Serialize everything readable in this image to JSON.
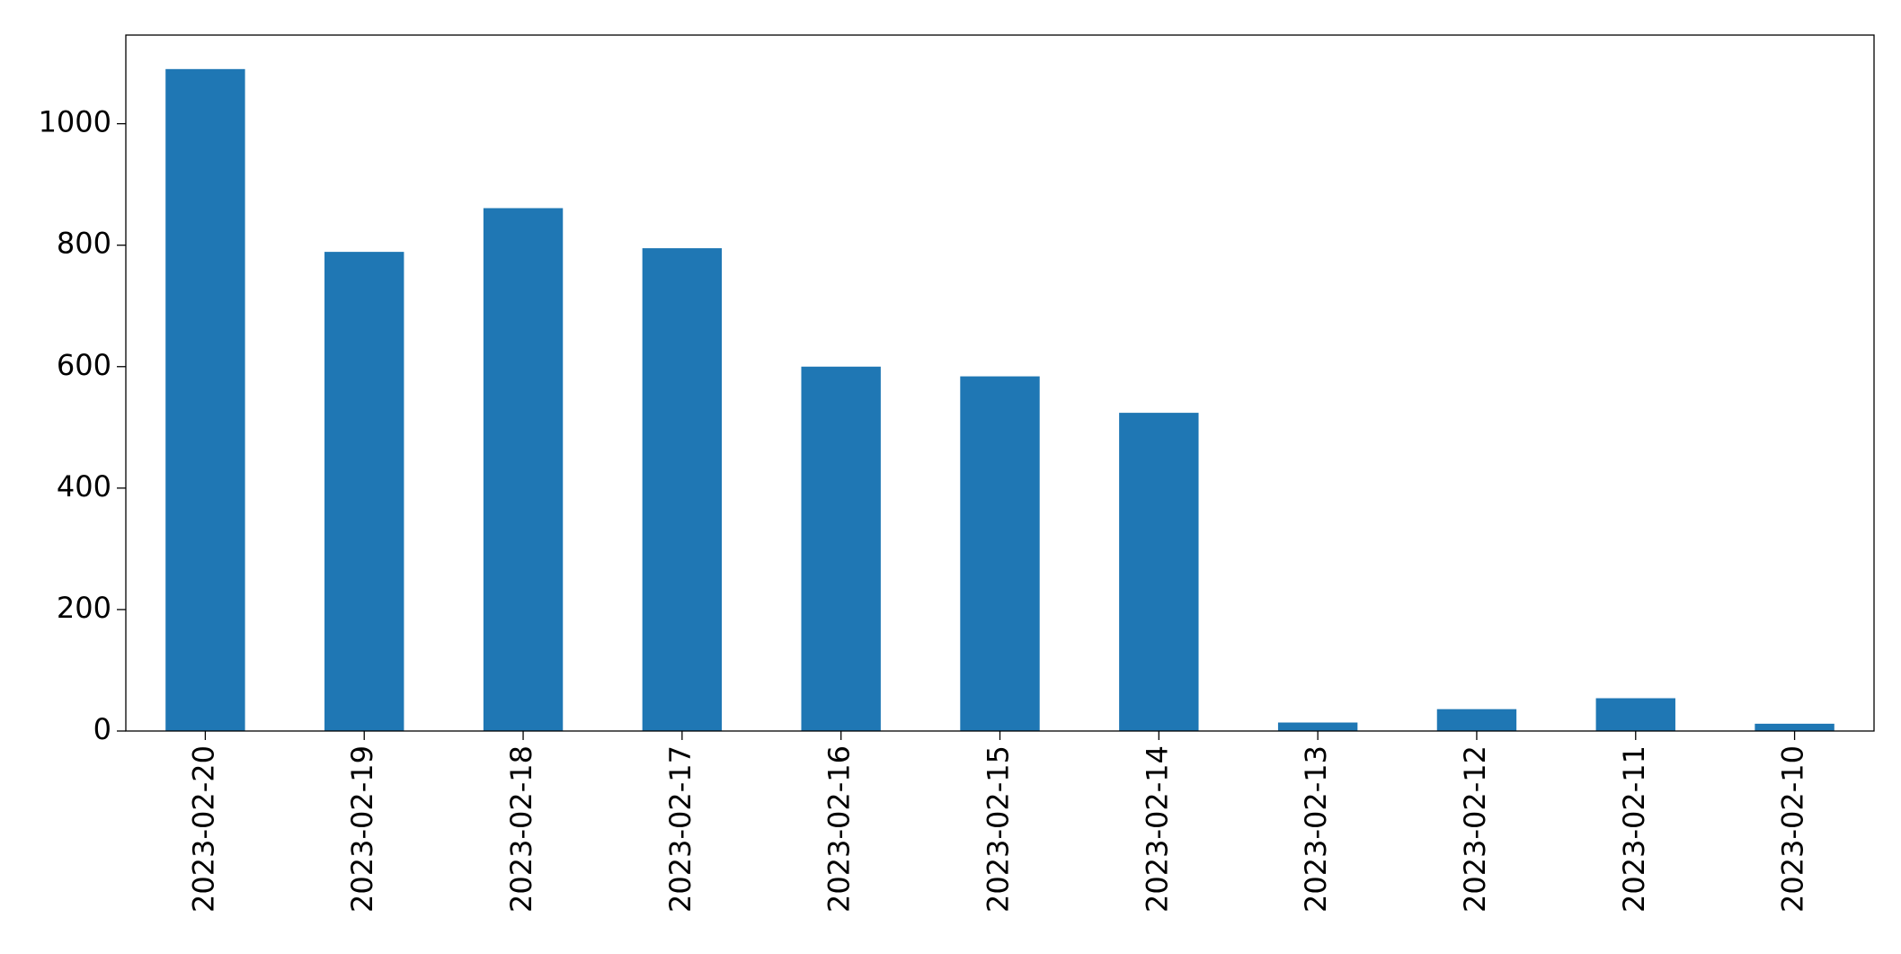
{
  "chart_data": {
    "type": "bar",
    "categories": [
      "2023-02-20",
      "2023-02-19",
      "2023-02-18",
      "2023-02-17",
      "2023-02-16",
      "2023-02-15",
      "2023-02-14",
      "2023-02-13",
      "2023-02-12",
      "2023-02-11",
      "2023-02-10"
    ],
    "values": [
      1090,
      789,
      861,
      795,
      600,
      584,
      524,
      14,
      36,
      54,
      12
    ],
    "color": "#1f77b4",
    "ylim": [
      0,
      1146
    ],
    "yticks": [
      0,
      200,
      400,
      600,
      800,
      1000
    ],
    "grid": false
  }
}
